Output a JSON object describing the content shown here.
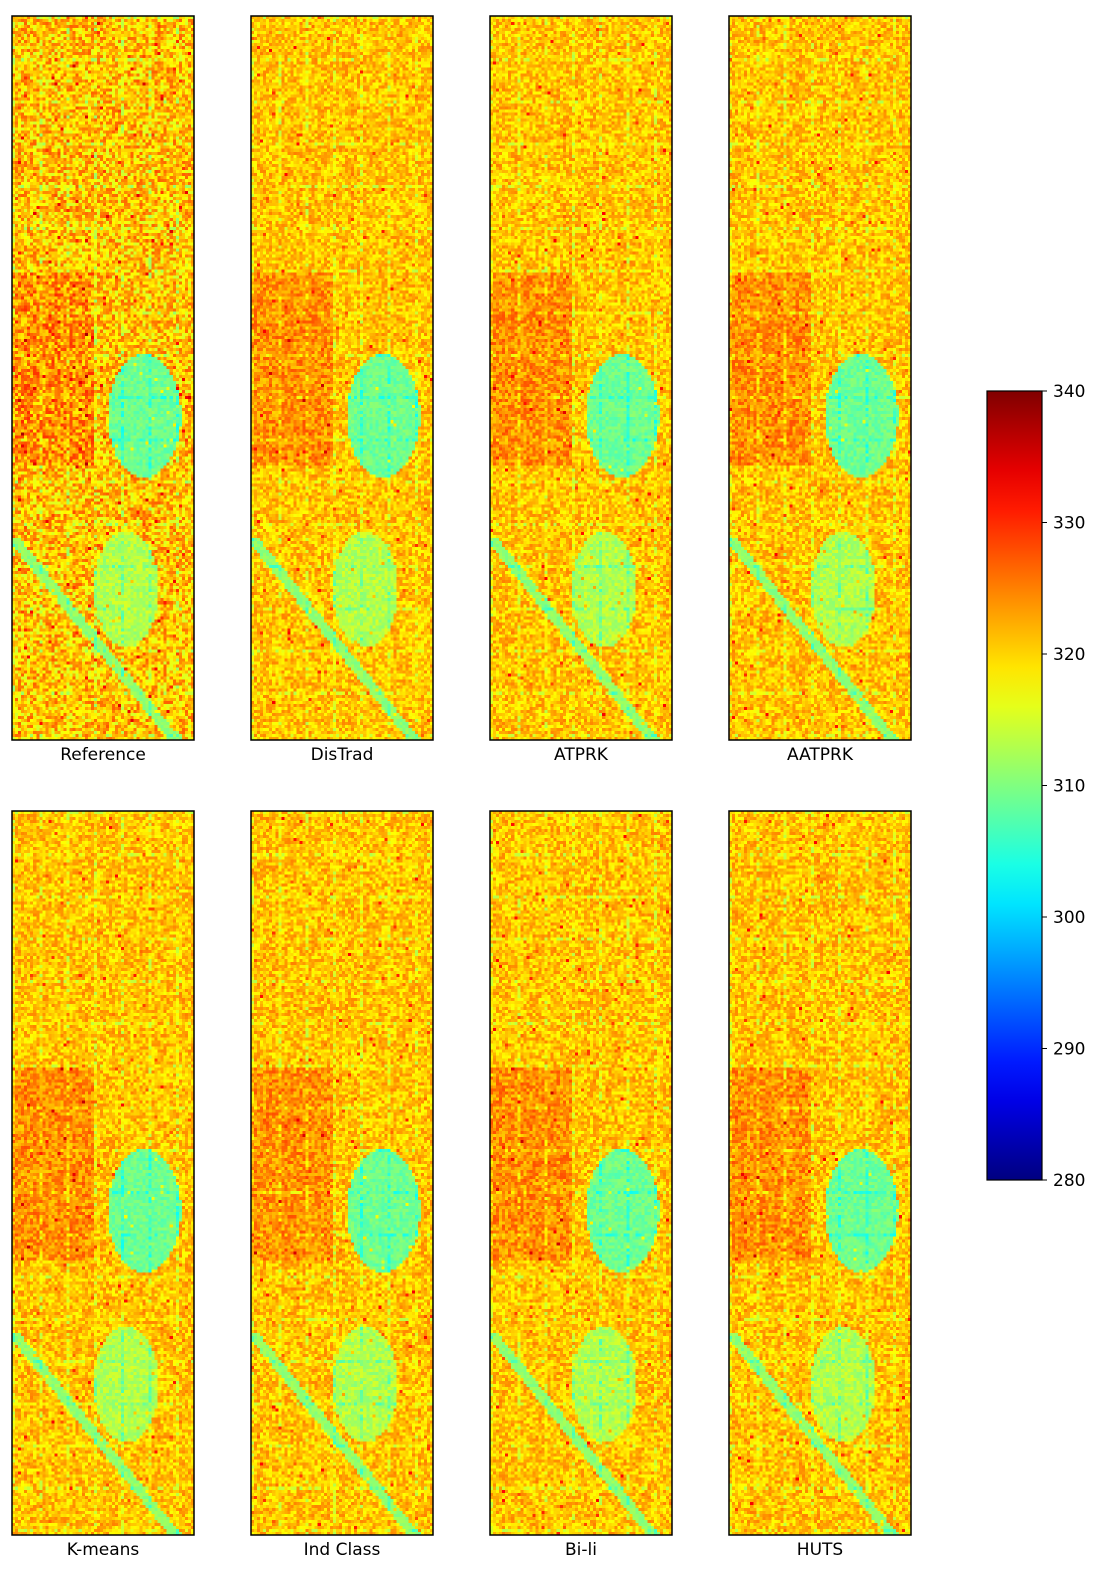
{
  "chart_data": {
    "type": "heatmap",
    "colormap": "jet",
    "colors": {
      "low": "#00007f",
      "mid": "#7fff7f",
      "high": "#7f0000",
      "background": "#ffffff"
    },
    "panels": [
      {
        "label": "Reference"
      },
      {
        "label": "DisTrad"
      },
      {
        "label": "ATPRK"
      },
      {
        "label": "AATPRK"
      },
      {
        "label": "K-means"
      },
      {
        "label": "Ind Class"
      },
      {
        "label": "Bi-li"
      },
      {
        "label": "HUTS"
      }
    ],
    "grid": "2x4",
    "colorbar": {
      "range": [
        280,
        340
      ],
      "ticks": [
        "340",
        "330",
        "320",
        "310",
        "300",
        "290",
        "280"
      ],
      "tick_values": [
        340,
        330,
        320,
        310,
        300,
        290,
        280
      ],
      "orientation": "vertical",
      "placement": "right"
    }
  }
}
